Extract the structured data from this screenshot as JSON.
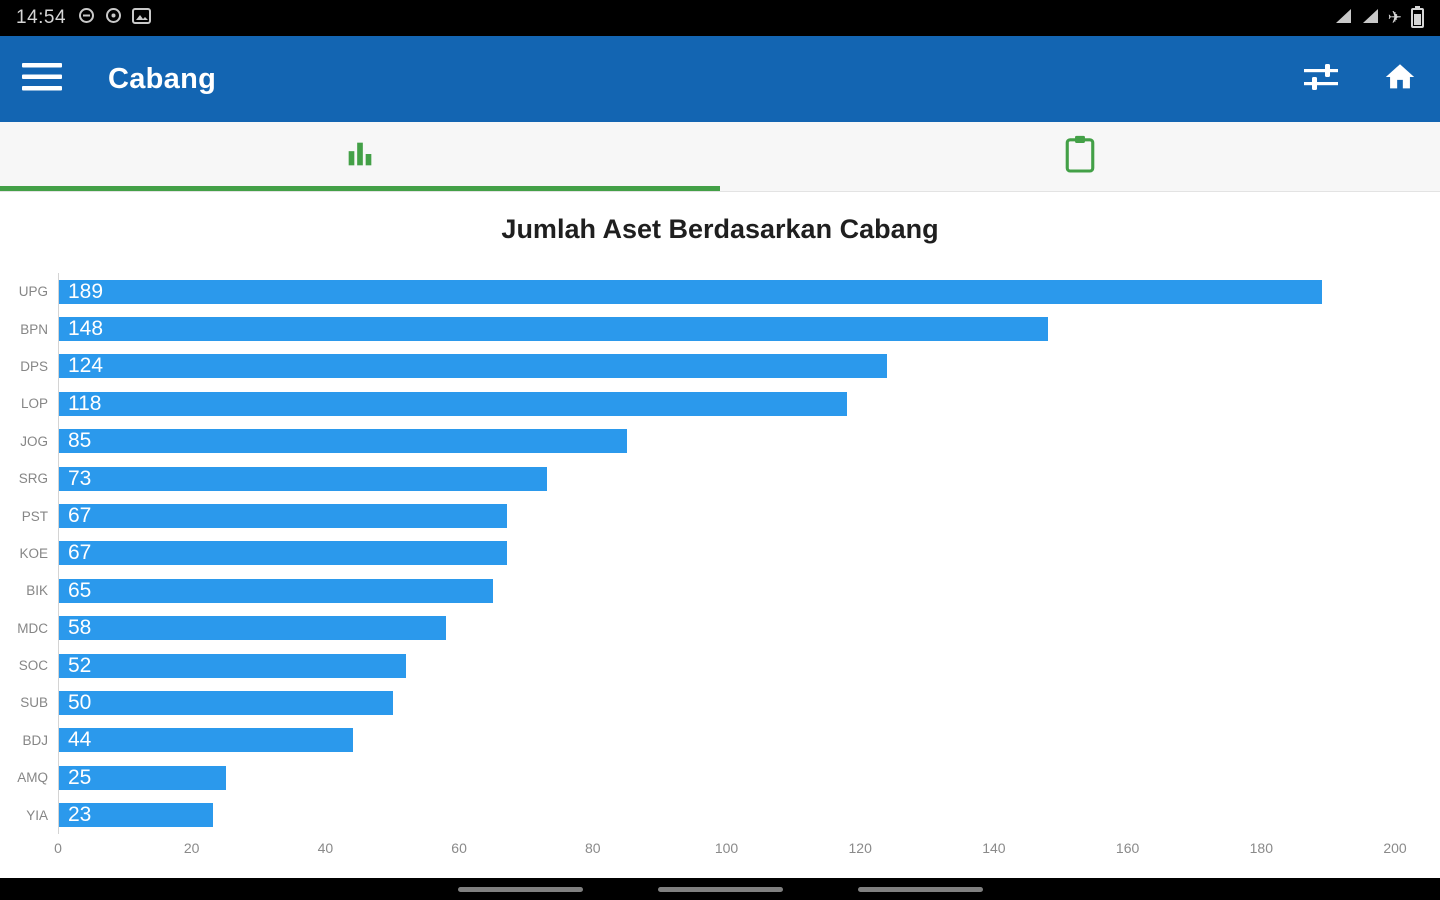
{
  "status_bar": {
    "time": "14:54",
    "left_icon_names": [
      "notification-circle-icon",
      "notification-circle-icon",
      "photo-notification-icon"
    ],
    "right_icon_names": [
      "cellular-signal-icon",
      "cellular-signal-icon",
      "airplane-mode-icon",
      "battery-icon"
    ]
  },
  "app_bar": {
    "title": "Cabang",
    "background_color": "#1365b2",
    "icon_names": [
      "menu-icon",
      "filter-icon",
      "home-icon"
    ]
  },
  "tab_bar": {
    "active_color": "#43a047",
    "tabs": [
      {
        "id": "chart",
        "icon": "bar-chart-icon",
        "active": true
      },
      {
        "id": "list",
        "icon": "clipboard-icon",
        "active": false
      }
    ]
  },
  "chart_data": {
    "type": "bar",
    "orientation": "horizontal",
    "title": "Jumlah Aset Berdasarkan Cabang",
    "categories": [
      "UPG",
      "BPN",
      "DPS",
      "LOP",
      "JOG",
      "SRG",
      "PST",
      "KOE",
      "BIK",
      "MDC",
      "SOC",
      "SUB",
      "BDJ",
      "AMQ",
      "YIA"
    ],
    "values": [
      189,
      148,
      124,
      118,
      85,
      73,
      67,
      67,
      65,
      58,
      52,
      50,
      44,
      25,
      23
    ],
    "xlim": [
      0,
      200
    ],
    "x_ticks": [
      0,
      20,
      40,
      60,
      80,
      100,
      120,
      140,
      160,
      180,
      200
    ],
    "bar_color": "#2b99ec",
    "value_label_color": "#ffffff",
    "grid": false,
    "legend": "none"
  },
  "nav_bar": {
    "hints": [
      "back",
      "home",
      "recents"
    ]
  }
}
